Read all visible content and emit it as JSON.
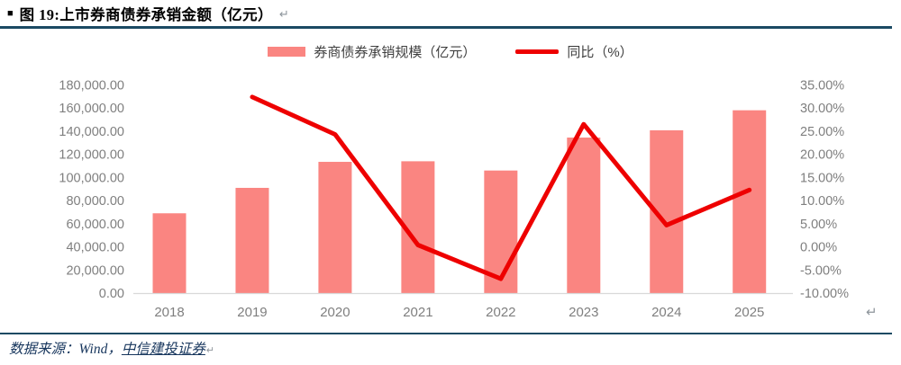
{
  "header": {
    "bullet": "■",
    "title": "图 19:上市券商债券承销金额（亿元）",
    "return_mark": "↵"
  },
  "colors": {
    "bar": "#fa8581",
    "line": "#ee0000",
    "divider": "#1b4a63",
    "axis_text": "#7f7f7f",
    "baseline": "#d9d9d9",
    "footer_text": "#17365d"
  },
  "chart_data": {
    "type": "bar",
    "subtype": "bar+line-dual-axis",
    "title": "上市券商债券承销金额（亿元）",
    "categories": [
      "2018",
      "2019",
      "2020",
      "2021",
      "2022",
      "2023",
      "2024",
      "2025"
    ],
    "series": [
      {
        "name": "券商债券承销规模（亿元）",
        "type": "bar",
        "axis": "left",
        "color": "#fa8581",
        "values": [
          69000,
          91000,
          113500,
          114000,
          106000,
          134500,
          140800,
          158100
        ]
      },
      {
        "name": "同比（%）",
        "type": "line",
        "axis": "right",
        "color": "#ee0000",
        "values": [
          null,
          32.4,
          24.3,
          0.4,
          -6.9,
          26.5,
          4.7,
          12.3
        ]
      }
    ],
    "left_axis": {
      "min": 0,
      "max": 180000,
      "step": 20000,
      "tick_labels": [
        "180,000.00",
        "160,000.00",
        "140,000.00",
        "120,000.00",
        "100,000.00",
        "80,000.00",
        "60,000.00",
        "40,000.00",
        "20,000.00",
        "0.00"
      ]
    },
    "right_axis": {
      "min": -10,
      "max": 35,
      "step": 5,
      "tick_labels": [
        "35.00%",
        "30.00%",
        "25.00%",
        "20.00%",
        "15.00%",
        "10.00%",
        "5.00%",
        "0.00%",
        "-5.00%",
        "-10.00%"
      ]
    },
    "grid": false,
    "legend_position": "top"
  },
  "footer": {
    "source_prefix": "数据来源：Wind，",
    "source_link": "中信建投证券",
    "return_mark": "↵"
  }
}
